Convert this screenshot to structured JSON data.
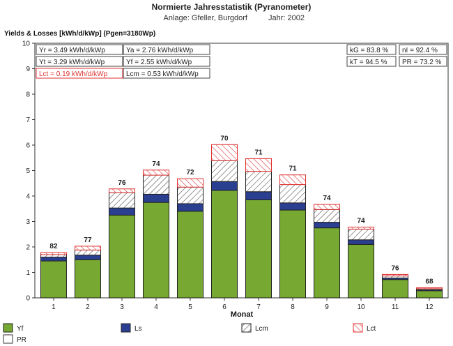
{
  "header": {
    "title": "Normierte Jahresstatistik (Pyranometer)",
    "subtitle_plant": "Anlage: Gfeller, Burgdorf",
    "subtitle_year": "Jahr: 2002"
  },
  "stats": {
    "yr": "Yr = 3.49 kWh/d/kWp",
    "ya": "Ya = 2.76 kWh/d/kWp",
    "yt": "Yt = 3.29 kWh/d/kWp",
    "yf": "Yf = 2.55 kWh/d/kWp",
    "lct": "Lct = 0.19 kWh/d/kWp",
    "lcm": "Lcm = 0.53 kWh/d/kWp",
    "kg": "kG = 83.8 %",
    "nl": "nI = 92.4 %",
    "kt": "kT = 94.5 %",
    "pr": "PR = 73.2 %"
  },
  "colors": {
    "yf": "#76a832",
    "ls": "#2a3f8f",
    "lcm": "#555555",
    "lct": "#e03030",
    "pr": "#ffffff"
  },
  "chart_data": {
    "type": "bar",
    "stacked": true,
    "ylabel": "Yields & Losses [kWh/d/kWp] (Pgen=3180Wp)",
    "xlabel": "Monat",
    "ylim": [
      0,
      10
    ],
    "yticks": [
      0,
      1,
      2,
      3,
      4,
      5,
      6,
      7,
      8,
      9,
      10
    ],
    "categories": [
      "1",
      "2",
      "3",
      "4",
      "5",
      "6",
      "7",
      "8",
      "9",
      "10",
      "11",
      "12"
    ],
    "series": [
      {
        "name": "Yf",
        "key": "yf",
        "values": [
          1.45,
          1.5,
          3.25,
          3.75,
          3.4,
          4.22,
          3.85,
          3.45,
          2.75,
          2.1,
          0.72,
          0.28
        ]
      },
      {
        "name": "Ls",
        "key": "ls",
        "values": [
          0.15,
          0.18,
          0.28,
          0.32,
          0.3,
          0.35,
          0.32,
          0.28,
          0.22,
          0.18,
          0.06,
          0.04
        ]
      },
      {
        "name": "Lcm",
        "key": "lcm",
        "values": [
          0.1,
          0.2,
          0.6,
          0.75,
          0.65,
          0.82,
          0.8,
          0.72,
          0.5,
          0.42,
          0.08,
          0.04
        ]
      },
      {
        "name": "Lct",
        "key": "lct",
        "values": [
          0.08,
          0.15,
          0.15,
          0.2,
          0.33,
          0.63,
          0.5,
          0.38,
          0.2,
          0.08,
          0.06,
          0.04
        ]
      }
    ],
    "pr_labels": [
      "82",
      "77",
      "76",
      "74",
      "72",
      "70",
      "71",
      "71",
      "74",
      "74",
      "76",
      "68"
    ],
    "legend": [
      {
        "name": "Yf",
        "key": "yf"
      },
      {
        "name": "Ls",
        "key": "ls"
      },
      {
        "name": "Lcm",
        "key": "lcm"
      },
      {
        "name": "Lct",
        "key": "lct"
      },
      {
        "name": "PR",
        "key": "pr"
      }
    ]
  }
}
